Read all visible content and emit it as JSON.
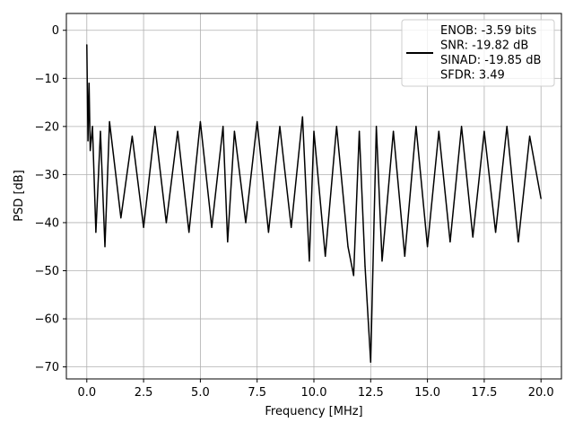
{
  "chart_data": {
    "type": "line",
    "xlabel": "Frequency [MHz]",
    "ylabel": "PSD [dB]",
    "xlim": [
      -0.9,
      20.9
    ],
    "ylim": [
      -72.5,
      3.5
    ],
    "x_ticks": [
      0.0,
      2.5,
      5.0,
      7.5,
      10.0,
      12.5,
      15.0,
      17.5,
      20.0
    ],
    "x_tick_labels": [
      "0.0",
      "2.5",
      "5.0",
      "7.5",
      "10.0",
      "12.5",
      "15.0",
      "17.5",
      "20.0"
    ],
    "y_ticks": [
      0,
      -10,
      -20,
      -30,
      -40,
      -50,
      -60,
      -70
    ],
    "y_tick_labels": [
      "0",
      "−10",
      "−20",
      "−30",
      "−40",
      "−50",
      "−60",
      "−70"
    ],
    "grid": true,
    "legend_position": "top-right",
    "series_color": "#000000",
    "series": [
      {
        "name": "",
        "x": [
          0.0,
          0.05,
          0.1,
          0.15,
          0.25,
          0.4,
          0.6,
          0.8,
          1.0,
          1.5,
          2.0,
          2.5,
          3.0,
          3.5,
          4.0,
          4.5,
          5.0,
          5.5,
          6.0,
          6.2,
          6.5,
          7.0,
          7.5,
          8.0,
          8.5,
          9.0,
          9.5,
          9.8,
          10.0,
          10.5,
          11.0,
          11.5,
          11.75,
          12.0,
          12.25,
          12.5,
          12.75,
          13.0,
          13.5,
          14.0,
          14.5,
          15.0,
          15.5,
          16.0,
          16.5,
          17.0,
          17.5,
          18.0,
          18.5,
          19.0,
          19.5,
          20.0
        ],
        "y": [
          -3,
          -23,
          -11,
          -25,
          -20,
          -42,
          -21,
          -45,
          -19,
          -39,
          -22,
          -41,
          -20,
          -40,
          -21,
          -42,
          -19,
          -41,
          -20,
          -44,
          -21,
          -40,
          -19,
          -42,
          -20,
          -41,
          -18,
          -48,
          -21,
          -47,
          -20,
          -45,
          -51,
          -21,
          -49,
          -69,
          -20,
          -48,
          -21,
          -47,
          -20,
          -45,
          -21,
          -44,
          -20,
          -43,
          -21,
          -42,
          -20,
          -44,
          -22,
          -35
        ]
      }
    ],
    "legend_entries": [
      "ENOB: -3.59 bits",
      "SNR: -19.82 dB",
      "SINAD: -19.85 dB",
      "SFDR: 3.49"
    ]
  }
}
